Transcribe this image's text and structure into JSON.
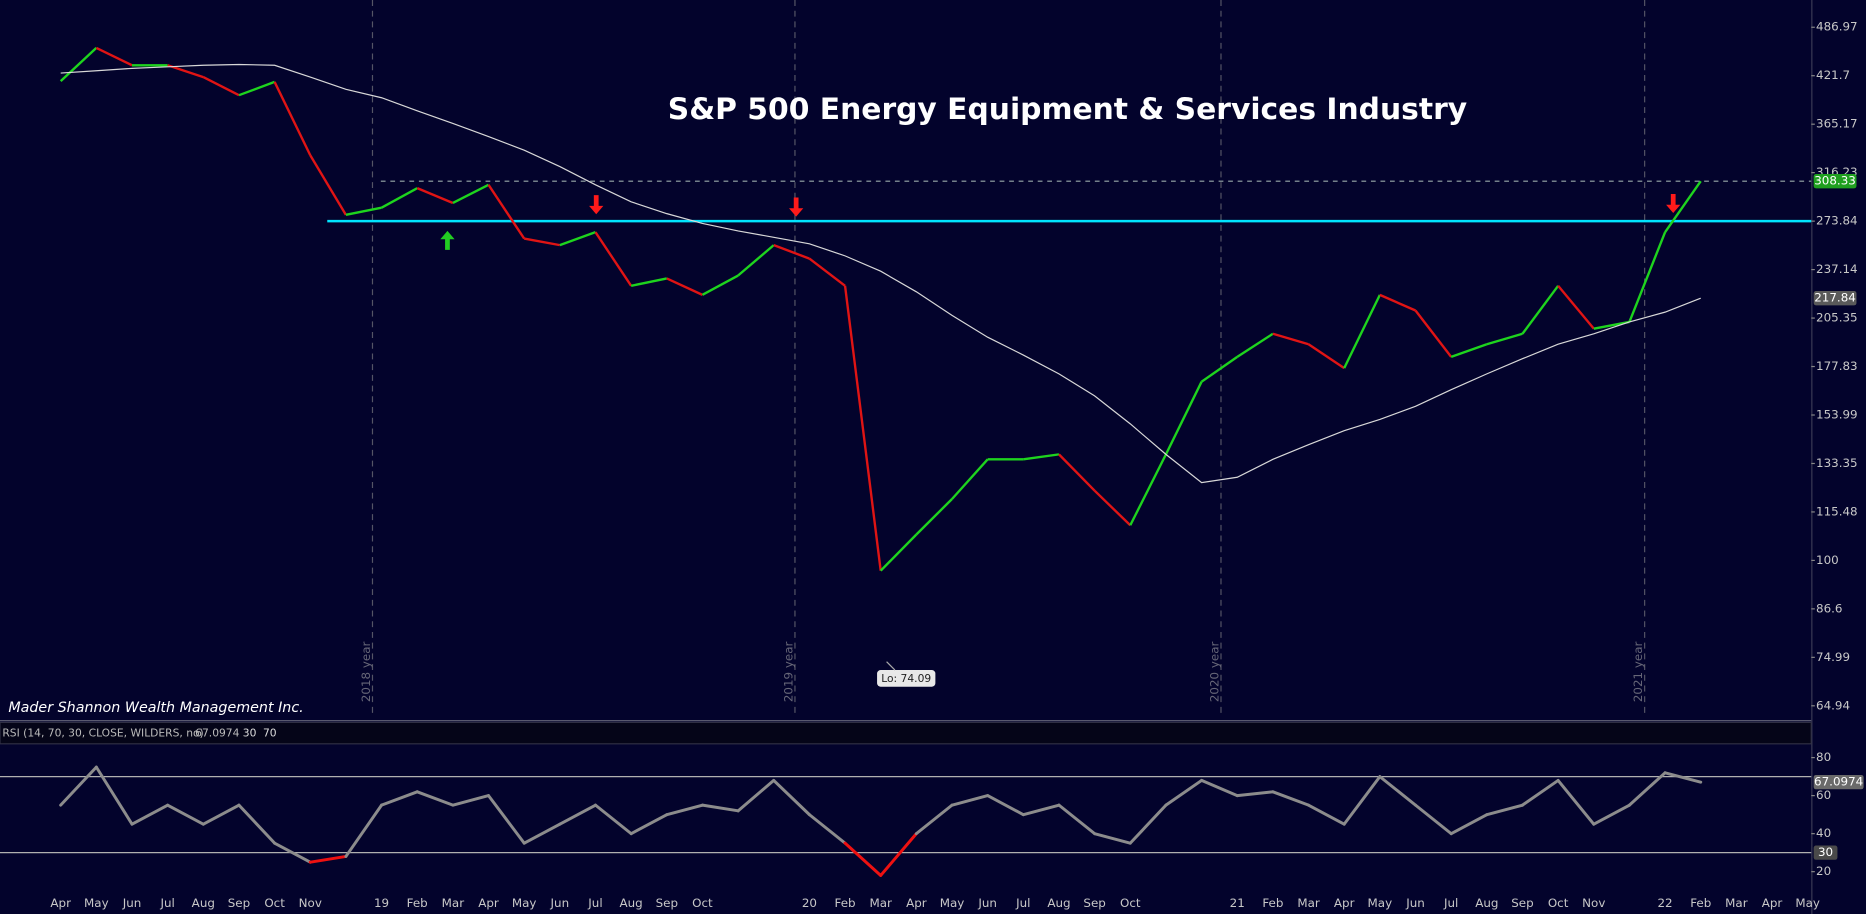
{
  "chart_data": {
    "type": "line",
    "title": "S&P 500 Energy Equipment & Services Industry",
    "watermark": "Mader Shannon Wealth Management Inc.",
    "annotation": "Lo: 74.09",
    "year_markers": [
      "2018 year",
      "2019 year",
      "2020 year",
      "2021 year"
    ],
    "categories": [
      "Apr",
      "May",
      "Jun",
      "Jul",
      "Aug",
      "Sep",
      "Oct",
      "Nov",
      null,
      "19",
      "Feb",
      "Mar",
      "Apr",
      "May",
      "Jun",
      "Jul",
      "Aug",
      "Sep",
      "Oct",
      null,
      null,
      "20",
      "Feb",
      "Mar",
      "Apr",
      "May",
      "Jun",
      "Jul",
      "Aug",
      "Sep",
      "Oct",
      null,
      null,
      "21",
      "Feb",
      "Mar",
      "Apr",
      "May",
      "Jun",
      "Jul",
      "Aug",
      "Sep",
      "Oct",
      "Nov",
      null,
      "22",
      "Feb",
      "Mar",
      "Apr",
      "May"
    ],
    "log_scale": true,
    "ylim": [
      62.7,
      528
    ],
    "yticks": [
      64.94,
      74.99,
      86.6,
      100,
      115.48,
      133.35,
      153.99,
      177.83,
      205.35,
      237.14,
      273.84,
      316.23,
      365.17,
      421.7,
      486.97
    ],
    "grid": false,
    "level": 273.84,
    "level_color": "#00e5ff",
    "series": [
      {
        "up_color": "#1ed41e",
        "down_color": "#e01414",
        "color": "#1fa01f",
        "values": [
          415,
          458,
          435,
          435,
          420,
          398,
          414,
          333,
          279,
          285,
          302,
          289,
          305,
          260,
          255,
          265,
          226,
          231,
          220,
          233,
          255,
          245,
          226,
          97,
          108,
          120,
          135,
          135,
          137,
          123,
          111,
          137,
          170,
          183,
          196,
          190,
          177,
          220,
          210,
          183,
          190,
          196,
          226,
          199,
          203,
          265,
          308.33,
          null,
          null,
          null
        ]
      },
      {
        "color": "#d8d8d8",
        "label_color": "#5a5a5a",
        "values": [
          425,
          428,
          431,
          433,
          435,
          436,
          435,
          420,
          405,
          395,
          380,
          366,
          352,
          338,
          322,
          305,
          290,
          280,
          272,
          266,
          261,
          256,
          247,
          236,
          222,
          207,
          194,
          184,
          174,
          163,
          150,
          137,
          126,
          128,
          135,
          141,
          147,
          152,
          158,
          166,
          174,
          182,
          190,
          196,
          203,
          209,
          217.84,
          null,
          null,
          null
        ]
      }
    ],
    "rsi": {
      "title": "RSI (14, 70, 30, CLOSE, WILDERS, no)",
      "ylim": [
        9,
        86
      ],
      "yticks": [
        20,
        40,
        60,
        80
      ],
      "overbought": 70,
      "oversold": 30,
      "color": "#8c8c8c",
      "high_color": "#22cc22",
      "low_color": "#ee1111",
      "values": [
        55,
        75,
        45,
        55,
        45,
        55,
        35,
        25,
        28,
        55,
        62,
        55,
        60,
        35,
        45,
        55,
        40,
        50,
        55,
        52,
        68,
        50,
        35,
        18,
        40,
        55,
        60,
        50,
        55,
        40,
        35,
        55,
        68,
        60,
        62,
        55,
        45,
        70,
        55,
        40,
        50,
        55,
        68,
        45,
        55,
        72,
        67.0974,
        null,
        null,
        null
      ]
    }
  }
}
